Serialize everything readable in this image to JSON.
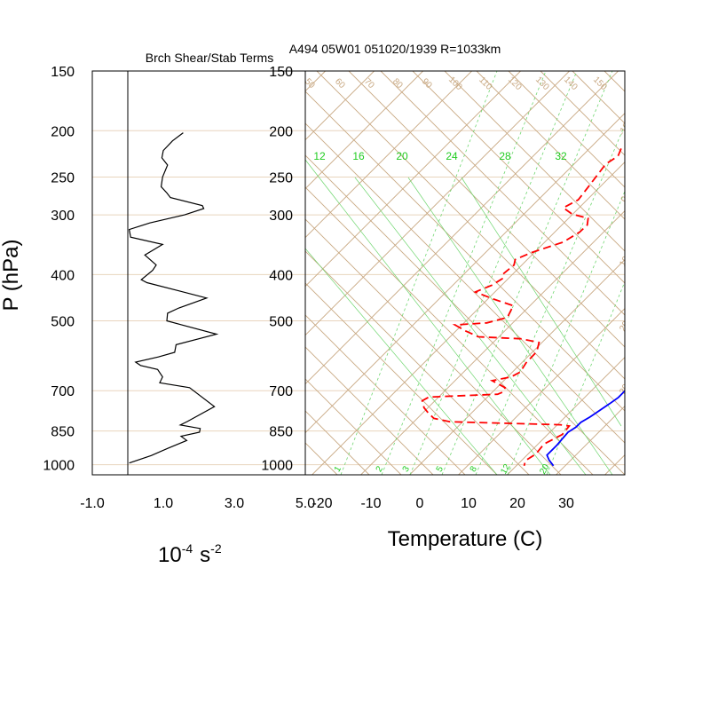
{
  "chart_data": [
    {
      "type": "line",
      "title": "Brch Shear/Stab Terms",
      "ylabel": "P (hPa)",
      "xlabel_base": "10",
      "xlabel_base_exp": "-4",
      "xlabel_unit": "s",
      "xlabel_unit_exp": "-2",
      "x_tick_labels": [
        "-1.0",
        "1.0",
        "3.0",
        "5.0"
      ],
      "x_ticks": [
        -1,
        1,
        3,
        5
      ],
      "xlim": [
        -1,
        5
      ],
      "ylim": [
        1050,
        150
      ],
      "y_scale": "log",
      "p_tick_labels": [
        "150",
        "200",
        "250",
        "300",
        "400",
        "500",
        "700",
        "850",
        "1000"
      ],
      "p_ticks": [
        150,
        200,
        250,
        300,
        400,
        500,
        700,
        850,
        1000
      ],
      "zero_line": 0,
      "series": [
        {
          "color": "#000000",
          "points": [
            [
              1.56,
              202
            ],
            [
              1.26,
              210
            ],
            [
              1.0,
              220
            ],
            [
              0.96,
              228
            ],
            [
              1.12,
              236
            ],
            [
              0.98,
              250
            ],
            [
              0.94,
              262
            ],
            [
              1.1,
              270
            ],
            [
              1.2,
              276
            ],
            [
              2.1,
              287
            ],
            [
              2.14,
              291
            ],
            [
              1.6,
              300
            ],
            [
              0.62,
              312
            ],
            [
              0.04,
              322
            ],
            [
              0.08,
              334
            ],
            [
              0.98,
              346
            ],
            [
              0.48,
              364
            ],
            [
              0.8,
              382
            ],
            [
              0.7,
              392
            ],
            [
              0.38,
              410
            ],
            [
              0.54,
              416
            ],
            [
              1.4,
              432
            ],
            [
              2.22,
              448
            ],
            [
              1.44,
              470
            ],
            [
              1.12,
              482
            ],
            [
              1.1,
              500
            ],
            [
              1.52,
              510
            ],
            [
              2.5,
              533
            ],
            [
              1.36,
              561
            ],
            [
              1.32,
              582
            ],
            [
              0.86,
              595
            ],
            [
              0.22,
              610
            ],
            [
              0.36,
              620
            ],
            [
              0.84,
              632
            ],
            [
              0.98,
              655
            ],
            [
              0.9,
              674
            ],
            [
              1.74,
              690
            ],
            [
              2.44,
              756
            ],
            [
              1.68,
              812
            ],
            [
              1.48,
              826
            ],
            [
              2.04,
              840
            ],
            [
              2.02,
              855
            ],
            [
              1.5,
              872
            ],
            [
              1.66,
              890
            ],
            [
              1.14,
              923
            ],
            [
              0.66,
              957
            ],
            [
              0.04,
              992
            ]
          ]
        }
      ]
    },
    {
      "type": "line",
      "title": "A494 05W01 051020/1939 R=1033km",
      "xlabel": "Temperature (C)",
      "x_tick_labels": [
        "-20",
        "-10",
        "0",
        "10",
        "20",
        "30"
      ],
      "x_ticks": [
        -20,
        -10,
        0,
        10,
        20,
        30
      ],
      "xlim": [
        -23.7,
        42
      ],
      "ylim": [
        1050,
        150
      ],
      "y_scale": "log",
      "p_tick_labels": [
        "150",
        "200",
        "250",
        "300",
        "400",
        "500",
        "700",
        "850",
        "1000"
      ],
      "p_ticks": [
        150,
        200,
        250,
        300,
        400,
        500,
        700,
        850,
        1000
      ],
      "series": [
        {
          "color": "#0000ff",
          "style": "solid",
          "points": [
            [
              2,
              195
            ],
            [
              3,
              213
            ],
            [
              4.7,
              230
            ],
            [
              6,
              250
            ],
            [
              7.4,
              272
            ],
            [
              7.7,
              284
            ],
            [
              7.7,
              300
            ],
            [
              9.5,
              318
            ],
            [
              12.7,
              346
            ],
            [
              16.6,
              385
            ],
            [
              18.1,
              405
            ],
            [
              18.3,
              415
            ],
            [
              19.3,
              452
            ],
            [
              20.2,
              478
            ],
            [
              20.6,
              496
            ],
            [
              19.9,
              526
            ],
            [
              21,
              560
            ],
            [
              23.8,
              617
            ],
            [
              25.8,
              670
            ],
            [
              26.9,
              703
            ],
            [
              26.9,
              723
            ],
            [
              26.4,
              745
            ],
            [
              25.6,
              775
            ],
            [
              25.1,
              795
            ],
            [
              24.3,
              815
            ],
            [
              24.3,
              835
            ],
            [
              23.7,
              855
            ],
            [
              24.1,
              910
            ],
            [
              24.1,
              955
            ],
            [
              25.6,
              979
            ],
            [
              27.6,
              1005
            ]
          ]
        },
        {
          "color": "#ff0000",
          "style": "dashed",
          "points": [
            [
              -23.5,
              218
            ],
            [
              -22.6,
              226
            ],
            [
              -23.5,
              235
            ],
            [
              -22.4,
              262
            ],
            [
              -21.8,
              279
            ],
            [
              -23.2,
              290
            ],
            [
              -20.1,
              299
            ],
            [
              -16,
              305
            ],
            [
              -14.8,
              315
            ],
            [
              -14.9,
              326
            ],
            [
              -16.2,
              342
            ],
            [
              -20.6,
              360
            ],
            [
              -22.5,
              372
            ],
            [
              -21.6,
              382
            ],
            [
              -22,
              399
            ],
            [
              -21.2,
              408
            ],
            [
              -22,
              421
            ],
            [
              -24,
              435
            ],
            [
              -18.9,
              450
            ],
            [
              -13.4,
              465
            ],
            [
              -12.2,
              492
            ],
            [
              -15.3,
              505
            ],
            [
              -21.4,
              510
            ],
            [
              -18,
              525
            ],
            [
              -14.2,
              540
            ],
            [
              -5.1,
              545
            ],
            [
              -0.6,
              555
            ],
            [
              0.8,
              580
            ],
            [
              0.9,
              612
            ],
            [
              1.6,
              640
            ],
            [
              0.7,
              655
            ],
            [
              -2.4,
              667
            ],
            [
              1.7,
              690
            ],
            [
              2.2,
              704
            ],
            [
              1.5,
              712
            ],
            [
              -12,
              722
            ],
            [
              -12.6,
              735
            ],
            [
              -10.8,
              760
            ],
            [
              -8.8,
              780
            ],
            [
              -6.6,
              800
            ],
            [
              -2.6,
              813
            ],
            [
              20.6,
              825
            ],
            [
              22.7,
              830
            ],
            [
              23,
              865
            ],
            [
              21.2,
              905
            ],
            [
              21.6,
              950
            ],
            [
              20.8,
              980
            ],
            [
              21.6,
              1005
            ]
          ]
        }
      ],
      "mixing_ratio_labels": [
        "12",
        "16",
        "20",
        "24",
        "28",
        "32"
      ],
      "dry_adiabat_labels": [
        "50",
        "60",
        "70",
        "80",
        "90",
        "100",
        "110",
        "120",
        "130",
        "140",
        "150"
      ],
      "side_labels": [
        "-10",
        "0",
        "10",
        "20",
        "30"
      ],
      "bottom_labels": [
        "1",
        "2",
        "3",
        "5",
        "8",
        "12",
        "20"
      ],
      "colors": {
        "isotherm": "#c8a882",
        "grid": "#e8d4bd",
        "mixing": "#6fd66f",
        "mixing_label": "#22cc22"
      }
    }
  ]
}
